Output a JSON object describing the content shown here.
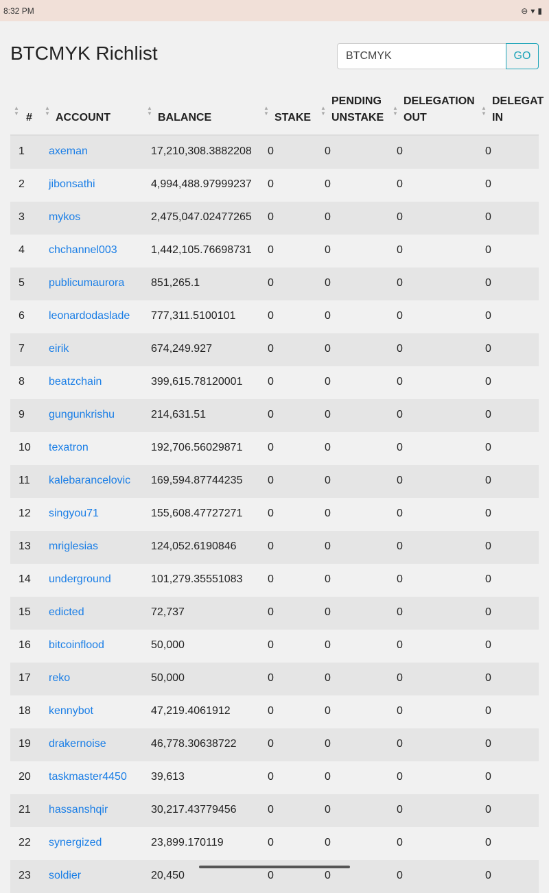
{
  "status_bar": {
    "time": "8:32 PM"
  },
  "page": {
    "title": "BTCMYK Richlist"
  },
  "search": {
    "value": "BTCMYK",
    "go_label": "GO"
  },
  "columns": [
    {
      "label": [
        "#"
      ]
    },
    {
      "label": [
        "ACCOUNT"
      ]
    },
    {
      "label": [
        "BALANCE"
      ]
    },
    {
      "label": [
        "STAKE"
      ]
    },
    {
      "label": [
        "PENDING",
        "UNSTAKE"
      ]
    },
    {
      "label": [
        "DELEGATION",
        "OUT"
      ]
    },
    {
      "label": [
        "DELEGAT",
        "IN"
      ]
    }
  ],
  "rows": [
    [
      "1",
      "axeman",
      "17,210,308.3882208",
      "0",
      "0",
      "0",
      "0"
    ],
    [
      "2",
      "jibonsathi",
      "4,994,488.97999237",
      "0",
      "0",
      "0",
      "0"
    ],
    [
      "3",
      "mykos",
      "2,475,047.02477265",
      "0",
      "0",
      "0",
      "0"
    ],
    [
      "4",
      "chchannel003",
      "1,442,105.76698731",
      "0",
      "0",
      "0",
      "0"
    ],
    [
      "5",
      "publicumaurora",
      "851,265.1",
      "0",
      "0",
      "0",
      "0"
    ],
    [
      "6",
      "leonardodaslade",
      "777,311.5100101",
      "0",
      "0",
      "0",
      "0"
    ],
    [
      "7",
      "eirik",
      "674,249.927",
      "0",
      "0",
      "0",
      "0"
    ],
    [
      "8",
      "beatzchain",
      "399,615.78120001",
      "0",
      "0",
      "0",
      "0"
    ],
    [
      "9",
      "gungunkrishu",
      "214,631.51",
      "0",
      "0",
      "0",
      "0"
    ],
    [
      "10",
      "texatron",
      "192,706.56029871",
      "0",
      "0",
      "0",
      "0"
    ],
    [
      "11",
      "kalebarancelovic",
      "169,594.87744235",
      "0",
      "0",
      "0",
      "0"
    ],
    [
      "12",
      "singyou71",
      "155,608.47727271",
      "0",
      "0",
      "0",
      "0"
    ],
    [
      "13",
      "mriglesias",
      "124,052.6190846",
      "0",
      "0",
      "0",
      "0"
    ],
    [
      "14",
      "underground",
      "101,279.35551083",
      "0",
      "0",
      "0",
      "0"
    ],
    [
      "15",
      "edicted",
      "72,737",
      "0",
      "0",
      "0",
      "0"
    ],
    [
      "16",
      "bitcoinflood",
      "50,000",
      "0",
      "0",
      "0",
      "0"
    ],
    [
      "17",
      "reko",
      "50,000",
      "0",
      "0",
      "0",
      "0"
    ],
    [
      "18",
      "kennybot",
      "47,219.4061912",
      "0",
      "0",
      "0",
      "0"
    ],
    [
      "19",
      "drakernoise",
      "46,778.30638722",
      "0",
      "0",
      "0",
      "0"
    ],
    [
      "20",
      "taskmaster4450",
      "39,613",
      "0",
      "0",
      "0",
      "0"
    ],
    [
      "21",
      "hassanshqir",
      "30,217.43779456",
      "0",
      "0",
      "0",
      "0"
    ],
    [
      "22",
      "synergized",
      "23,899.170119",
      "0",
      "0",
      "0",
      "0"
    ],
    [
      "23",
      "soldier",
      "20,450",
      "0",
      "0",
      "0",
      "0"
    ]
  ],
  "colors": {
    "link": "#1a7ee6",
    "accent": "#1aa3b8",
    "status_bar": "#f1e0d8"
  }
}
